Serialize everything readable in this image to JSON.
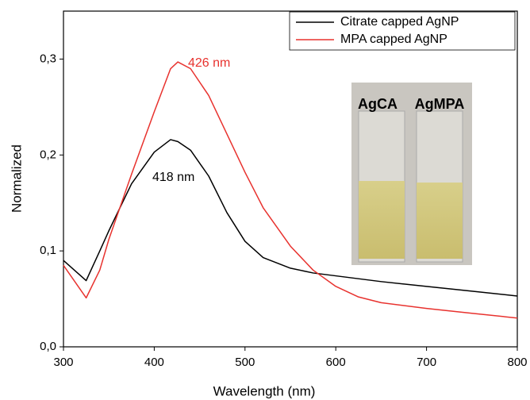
{
  "chart_data": {
    "type": "line",
    "x_label": "Wavelength (nm)",
    "y_label": "Normalized",
    "x": [
      300,
      325,
      340,
      350,
      375,
      400,
      418,
      426,
      440,
      460,
      480,
      500,
      520,
      550,
      575,
      600,
      625,
      650,
      700,
      750,
      800
    ],
    "series": [
      {
        "name": "Citrate capped AgNP",
        "color": "#000000",
        "values": [
          0.09,
          0.069,
          0.1,
          0.121,
          0.17,
          0.203,
          0.216,
          0.214,
          0.205,
          0.178,
          0.14,
          0.11,
          0.093,
          0.082,
          0.077,
          0.074,
          0.071,
          0.068,
          0.063,
          0.058,
          0.053
        ]
      },
      {
        "name": "MPA capped AgNP",
        "color": "#e8322e",
        "values": [
          0.085,
          0.051,
          0.08,
          0.112,
          0.18,
          0.245,
          0.29,
          0.297,
          0.29,
          0.262,
          0.222,
          0.182,
          0.145,
          0.105,
          0.08,
          0.063,
          0.052,
          0.046,
          0.04,
          0.035,
          0.03
        ]
      }
    ],
    "annotations": [
      "426 nm",
      "418 nm"
    ],
    "inset_labels": [
      "AgCA",
      "AgMPA"
    ],
    "xlim": [
      300,
      800
    ],
    "ylim": [
      0,
      0.35
    ],
    "xticks": [
      300,
      400,
      500,
      600,
      700,
      800
    ],
    "yticks": [
      {
        "value": 0,
        "label": "0,0"
      },
      {
        "value": 0.1,
        "label": "0,1"
      },
      {
        "value": 0.2,
        "label": "0,2"
      },
      {
        "value": 0.3,
        "label": "0,3"
      }
    ],
    "legend": "upper right"
  }
}
